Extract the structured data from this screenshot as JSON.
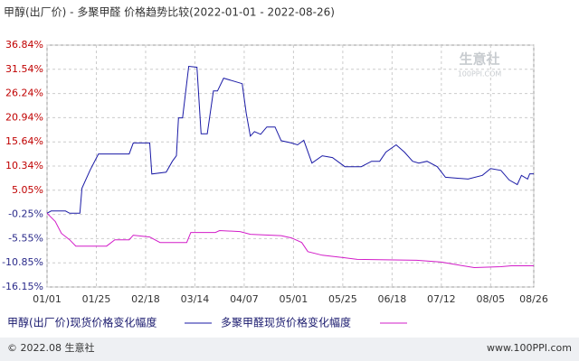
{
  "chart_data": {
    "type": "line",
    "title": "甲醇(出厂价) - 多聚甲醛 价格趋势比较(2022-01-01 - 2022-08-26)",
    "ylim": [
      -16.15,
      36.84
    ],
    "yticks": [
      {
        "value": 36.84,
        "label": "36.84%"
      },
      {
        "value": 31.54,
        "label": "31.54%"
      },
      {
        "value": 26.24,
        "label": "26.24%"
      },
      {
        "value": 20.94,
        "label": "20.94%"
      },
      {
        "value": 15.64,
        "label": "15.64%"
      },
      {
        "value": 10.34,
        "label": "10.34%"
      },
      {
        "value": 5.05,
        "label": "5.05%"
      },
      {
        "value": -0.25,
        "label": "-0.25%"
      },
      {
        "value": -5.55,
        "label": "-5.55%"
      },
      {
        "value": -10.85,
        "label": "-10.85%"
      },
      {
        "value": -16.15,
        "label": "-16.15%"
      }
    ],
    "xticks": [
      "01/01",
      "01/25",
      "02/18",
      "03/14",
      "04/07",
      "05/01",
      "05/25",
      "06/18",
      "07/12",
      "08/05",
      "08/26"
    ],
    "grid": true,
    "series": [
      {
        "name": "甲醇(出厂价)现货价格变化幅度",
        "color": "#1a1aa6",
        "x": [
          "01/01",
          "01/03",
          "01/10",
          "01/12",
          "01/17",
          "01/18",
          "01/22",
          "01/26",
          "02/10",
          "02/12",
          "02/20",
          "02/21",
          "02/28",
          "03/03",
          "03/05",
          "03/06",
          "03/08",
          "03/11",
          "03/15",
          "03/17",
          "03/20",
          "03/23",
          "03/25",
          "03/28",
          "04/06",
          "04/08",
          "04/10",
          "04/12",
          "04/15",
          "04/18",
          "04/22",
          "04/25",
          "04/30",
          "05/03",
          "05/06",
          "05/10",
          "05/15",
          "05/20",
          "05/26",
          "06/03",
          "06/08",
          "06/12",
          "06/15",
          "06/20",
          "06/24",
          "06/28",
          "07/01",
          "07/05",
          "07/10",
          "07/14",
          "07/25",
          "08/01",
          "08/05",
          "08/10",
          "08/14",
          "08/18",
          "08/20",
          "08/23",
          "08/24",
          "08/26"
        ],
        "values": [
          0,
          0.5,
          0.5,
          0,
          0,
          5.5,
          9.5,
          13.0,
          13.0,
          15.4,
          15.4,
          8.6,
          9.0,
          11.4,
          12.6,
          20.9,
          20.9,
          32.2,
          32.0,
          17.4,
          17.4,
          26.8,
          26.8,
          29.6,
          28.4,
          21.9,
          16.9,
          17.9,
          17.3,
          18.9,
          18.9,
          15.9,
          15.4,
          15.0,
          16.0,
          11.0,
          12.6,
          12.2,
          10.2,
          10.2,
          11.4,
          11.4,
          13.4,
          15.0,
          13.4,
          11.4,
          11.0,
          11.4,
          10.2,
          7.9,
          7.5,
          8.3,
          9.8,
          9.4,
          7.3,
          6.3,
          8.3,
          7.5,
          8.65,
          8.65
        ]
      },
      {
        "name": "多聚甲醛现货价格变化幅度",
        "color": "#d21cc8",
        "x": [
          "01/01",
          "01/05",
          "01/08",
          "01/12",
          "01/15",
          "01/30",
          "02/03",
          "02/10",
          "02/12",
          "02/20",
          "02/25",
          "03/10",
          "03/12",
          "03/24",
          "03/26",
          "04/05",
          "04/10",
          "04/25",
          "04/30",
          "05/05",
          "05/08",
          "05/15",
          "05/25",
          "06/01",
          "06/30",
          "07/12",
          "07/20",
          "07/28",
          "08/10",
          "08/15",
          "08/26"
        ],
        "values": [
          0,
          -1.8,
          -4.4,
          -5.8,
          -7.2,
          -7.2,
          -5.8,
          -5.8,
          -4.8,
          -5.2,
          -6.4,
          -6.4,
          -4.2,
          -4.2,
          -3.8,
          -4.0,
          -4.6,
          -4.9,
          -5.4,
          -6.4,
          -8.4,
          -9.2,
          -9.7,
          -10.1,
          -10.3,
          -10.7,
          -11.3,
          -11.9,
          -11.7,
          -11.5,
          -11.5
        ]
      }
    ],
    "watermark": "生意社",
    "watermark_sub": "100PPI.COM",
    "source_left": "© 2022.08 生意社",
    "source_right": "www.100PPI.com"
  }
}
